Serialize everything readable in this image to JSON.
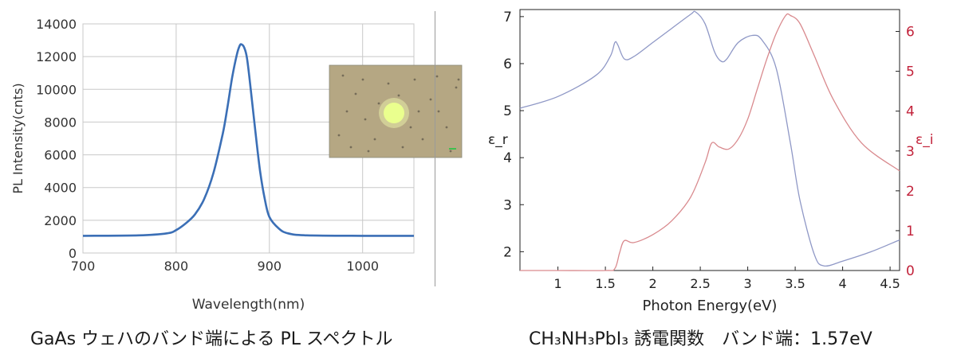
{
  "chart_data": [
    {
      "type": "line",
      "xlabel": "Wavelength(nm)",
      "ylabel": "PL Intensity(cnts)",
      "xlim": [
        700,
        1055
      ],
      "ylim": [
        0,
        14000
      ],
      "x_ticks": [
        700,
        800,
        900,
        1000
      ],
      "y_ticks": [
        0,
        2000,
        4000,
        6000,
        8000,
        10000,
        12000,
        14000
      ],
      "grid": true,
      "series": [
        {
          "color": "#3b6fb6",
          "x": [
            700,
            760,
            790,
            800,
            810,
            820,
            830,
            840,
            850,
            855,
            860,
            865,
            868,
            870,
            873,
            876,
            880,
            885,
            890,
            895,
            900,
            910,
            920,
            940,
            1000,
            1055
          ],
          "y": [
            1050,
            1080,
            1200,
            1400,
            1800,
            2350,
            3300,
            4900,
            7300,
            8900,
            10700,
            12100,
            12650,
            12750,
            12550,
            11900,
            10000,
            7400,
            5000,
            3300,
            2200,
            1500,
            1200,
            1080,
            1050,
            1050
          ]
        }
      ],
      "inset": {
        "background": "#b5a783",
        "spot_color": "#eaff8e"
      }
    },
    {
      "type": "line",
      "xlabel": "Photon Energy(eV)",
      "ylabel": "ε_r",
      "ylabel_right": "ε_i",
      "xlim": [
        0.6,
        4.6
      ],
      "ylim": [
        1.6,
        7.15
      ],
      "ylim_right": [
        0,
        6.55
      ],
      "x_ticks": [
        1,
        1.5,
        2,
        2.5,
        3,
        3.5,
        4,
        4.5
      ],
      "y_ticks": [
        2,
        3,
        4,
        5,
        6,
        7
      ],
      "y_ticks_right": [
        0,
        1,
        2,
        3,
        4,
        5,
        6
      ],
      "grid": false,
      "series": [
        {
          "axis": "left",
          "color": "#8f98c6",
          "x": [
            0.6,
            1.0,
            1.4,
            1.55,
            1.6,
            1.63,
            1.7,
            1.8,
            2.0,
            2.2,
            2.4,
            2.45,
            2.55,
            2.65,
            2.72,
            2.78,
            2.9,
            3.05,
            3.15,
            3.3,
            3.45,
            3.55,
            3.7,
            3.8,
            4.0,
            4.3,
            4.6
          ],
          "y": [
            5.05,
            5.3,
            5.75,
            6.15,
            6.45,
            6.4,
            6.1,
            6.15,
            6.45,
            6.75,
            7.05,
            7.1,
            6.85,
            6.25,
            6.05,
            6.1,
            6.45,
            6.6,
            6.5,
            5.9,
            4.3,
            3.1,
            1.95,
            1.7,
            1.8,
            2.0,
            2.25
          ]
        },
        {
          "axis": "right",
          "color": "#d98a8e",
          "x": [
            0.6,
            1.0,
            1.5,
            1.6,
            1.65,
            1.7,
            1.8,
            2.0,
            2.2,
            2.4,
            2.55,
            2.62,
            2.7,
            2.8,
            2.9,
            3.0,
            3.1,
            3.2,
            3.3,
            3.4,
            3.45,
            3.55,
            3.7,
            3.9,
            4.2,
            4.6
          ],
          "y": [
            0,
            0,
            0,
            0.05,
            0.45,
            0.75,
            0.7,
            0.9,
            1.25,
            1.85,
            2.7,
            3.2,
            3.1,
            3.05,
            3.3,
            3.8,
            4.55,
            5.3,
            5.95,
            6.4,
            6.4,
            6.2,
            5.4,
            4.3,
            3.2,
            2.5
          ]
        }
      ]
    }
  ],
  "captions": {
    "left": "GaAs ウェハのバンド端による PL スペクトル",
    "right": "CH₃NH₃PbI₃ 誘電関数　バンド端：1.57eV"
  }
}
